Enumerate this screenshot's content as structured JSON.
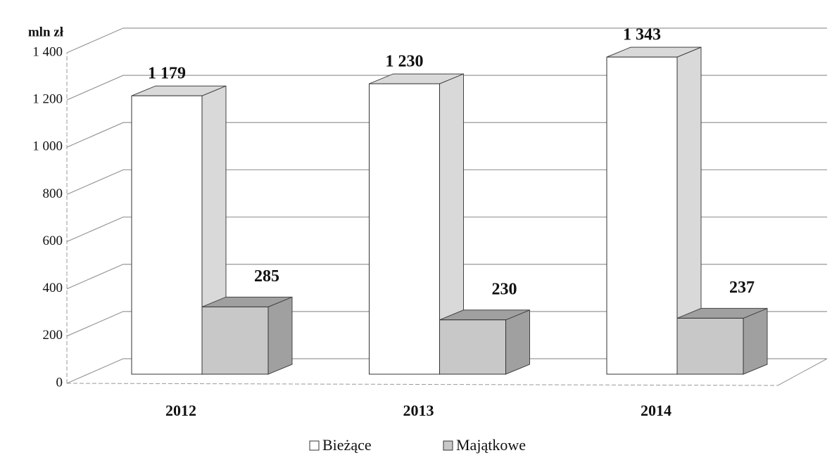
{
  "chart_data": {
    "type": "bar3d",
    "y_label": "mln zł",
    "categories": [
      "2012",
      "2013",
      "2014"
    ],
    "series": [
      {
        "name": "Bieżące",
        "color": "#ffffff",
        "side": "#d9d9d9",
        "values": [
          1179,
          1230,
          1343
        ],
        "value_labels": [
          "1 179",
          "1 230",
          "1 343"
        ]
      },
      {
        "name": "Majątkowe",
        "color": "#c8c8c8",
        "side": "#a0a0a0",
        "values": [
          285,
          230,
          237
        ]
      }
    ],
    "ylim": [
      0,
      1400
    ],
    "yticks": [
      0,
      200,
      400,
      600,
      800,
      {
        "value": 1000,
        "label": "1 000"
      },
      {
        "value": 1200,
        "label": "1 200"
      },
      {
        "value": 1400,
        "label": "1 400"
      }
    ],
    "grid": true
  }
}
